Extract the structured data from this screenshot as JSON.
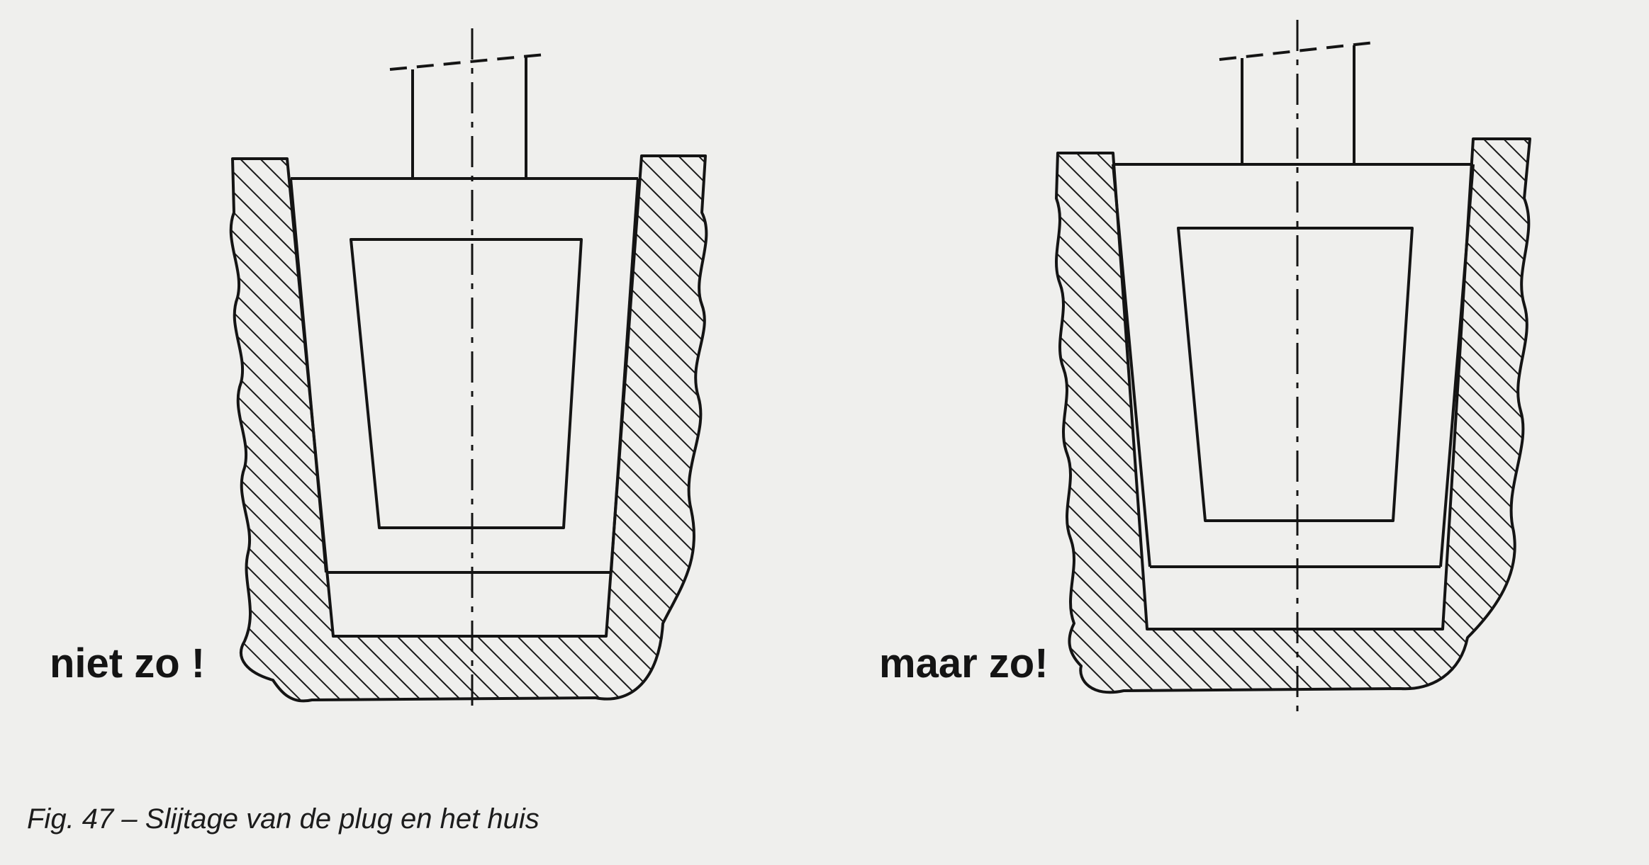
{
  "figure": {
    "caption": "Fig. 47 – Slijtage van de plug en het huis",
    "panels": [
      {
        "label": "niet zo !"
      },
      {
        "label": "maar zo!"
      }
    ]
  },
  "colors": {
    "ink": "#141414",
    "paper": "#efefed"
  }
}
